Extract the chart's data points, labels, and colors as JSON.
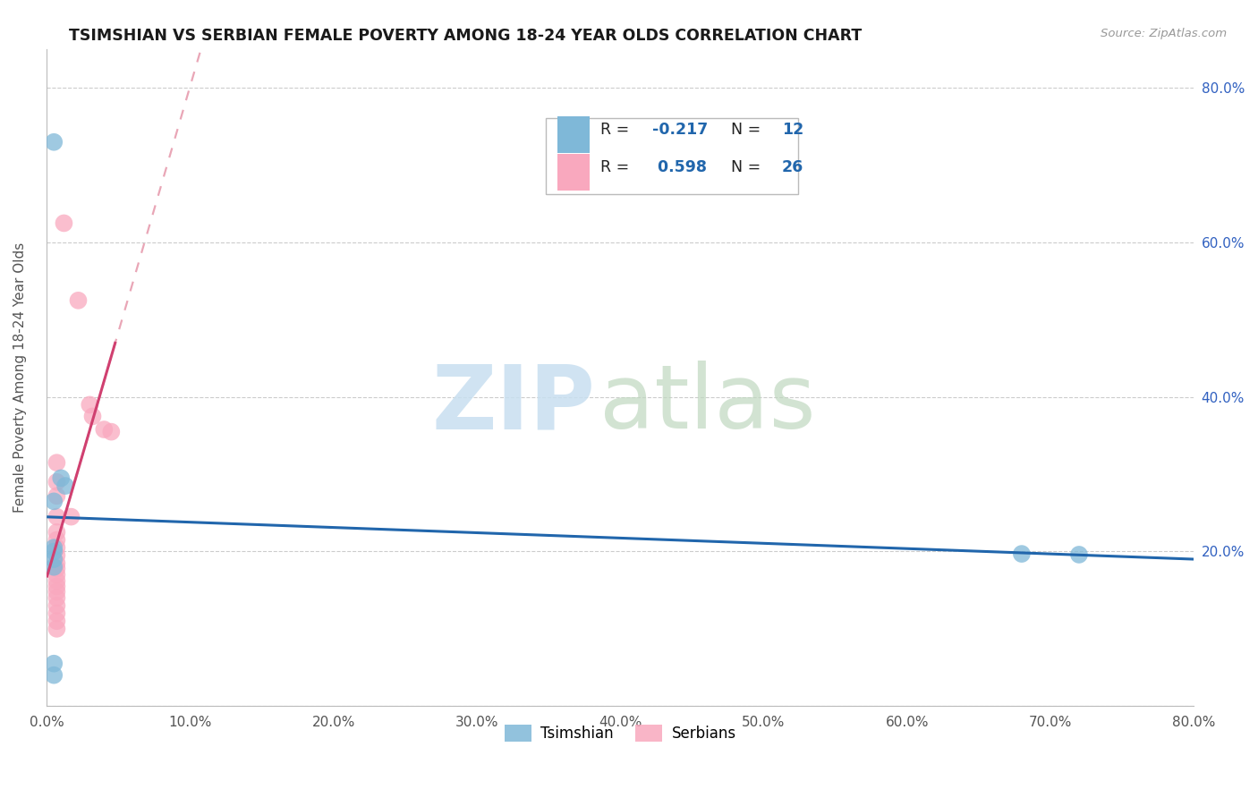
{
  "title": "TSIMSHIAN VS SERBIAN FEMALE POVERTY AMONG 18-24 YEAR OLDS CORRELATION CHART",
  "source": "Source: ZipAtlas.com",
  "ylabel": "Female Poverty Among 18-24 Year Olds",
  "xlim": [
    0.0,
    0.8
  ],
  "ylim": [
    0.0,
    0.85
  ],
  "ytick_vals": [
    0.0,
    0.2,
    0.4,
    0.6,
    0.8
  ],
  "xtick_vals": [
    0.0,
    0.1,
    0.2,
    0.3,
    0.4,
    0.5,
    0.6,
    0.7,
    0.8
  ],
  "legend_r1": "-0.217",
  "legend_n1": "12",
  "legend_r2": "0.598",
  "legend_n2": "26",
  "tsimshian_points": [
    [
      0.005,
      0.73
    ],
    [
      0.01,
      0.295
    ],
    [
      0.013,
      0.285
    ],
    [
      0.005,
      0.265
    ],
    [
      0.005,
      0.205
    ],
    [
      0.005,
      0.2
    ],
    [
      0.005,
      0.19
    ],
    [
      0.005,
      0.18
    ],
    [
      0.005,
      0.055
    ],
    [
      0.68,
      0.197
    ],
    [
      0.72,
      0.196
    ],
    [
      0.005,
      0.04
    ]
  ],
  "serbian_points": [
    [
      0.012,
      0.625
    ],
    [
      0.022,
      0.525
    ],
    [
      0.03,
      0.39
    ],
    [
      0.032,
      0.375
    ],
    [
      0.04,
      0.358
    ],
    [
      0.045,
      0.355
    ],
    [
      0.007,
      0.315
    ],
    [
      0.007,
      0.29
    ],
    [
      0.007,
      0.272
    ],
    [
      0.007,
      0.245
    ],
    [
      0.007,
      0.225
    ],
    [
      0.007,
      0.215
    ],
    [
      0.007,
      0.205
    ],
    [
      0.007,
      0.195
    ],
    [
      0.007,
      0.185
    ],
    [
      0.007,
      0.178
    ],
    [
      0.007,
      0.17
    ],
    [
      0.007,
      0.162
    ],
    [
      0.007,
      0.155
    ],
    [
      0.007,
      0.148
    ],
    [
      0.007,
      0.14
    ],
    [
      0.007,
      0.13
    ],
    [
      0.007,
      0.12
    ],
    [
      0.007,
      0.11
    ],
    [
      0.007,
      0.1
    ],
    [
      0.017,
      0.245
    ]
  ],
  "tsimshian_color": "#7fb8d8",
  "serbian_color": "#f9a8be",
  "tsimshian_trendline_color": "#2166ac",
  "serbian_solid_color": "#d04070",
  "serbian_dashed_color": "#e08098",
  "background_color": "#ffffff",
  "grid_color": "#cccccc",
  "right_axis_color": "#3060c0",
  "watermark_zip_color": "#c8dff0",
  "watermark_atlas_color": "#c0d8c0"
}
